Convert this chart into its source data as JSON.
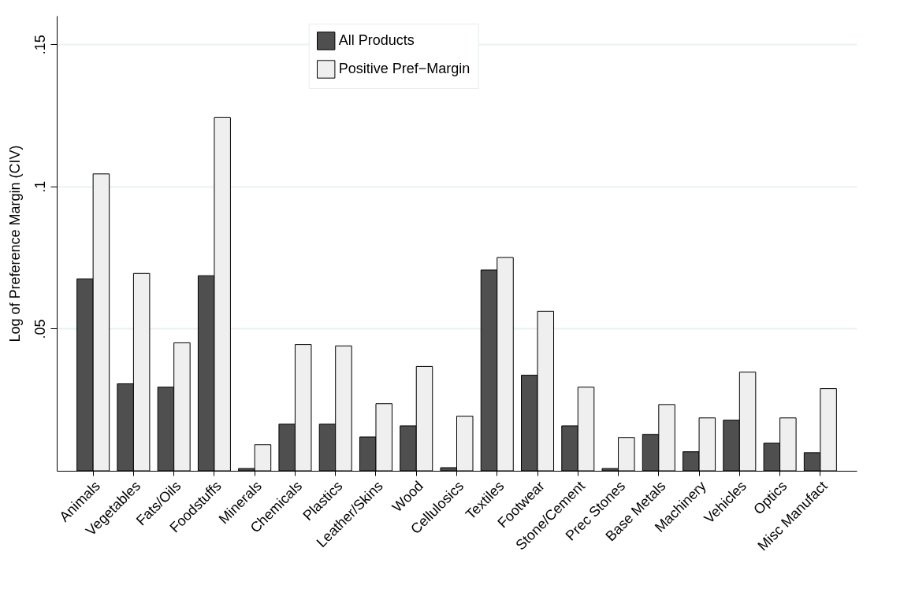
{
  "chart_data": {
    "type": "bar",
    "ylabel": "Log of Preference Margin (CIV)",
    "categories": [
      "Animals",
      "Vegetables",
      "Fats/Oils",
      "Foodstuffs",
      "Minerals",
      "Chemicals",
      "Plastics",
      "Leather/Skins",
      "Wood",
      "Cellulosics",
      "Textiles",
      "Footwear",
      "Stone/Cement",
      "Prec Stones",
      "Base Metals",
      "Machinery",
      "Vehicles",
      "Optics",
      "Misc Manufact"
    ],
    "series": [
      {
        "name": "All Products",
        "color": "#4f4f4f",
        "values": [
          0.0675,
          0.0306,
          0.0294,
          0.0686,
          0.0008,
          0.0164,
          0.0164,
          0.0119,
          0.0158,
          0.0011,
          0.0706,
          0.0336,
          0.0158,
          0.0008,
          0.0128,
          0.0067,
          0.0178,
          0.0097,
          0.0064
        ]
      },
      {
        "name": "Positive Pref−Margin",
        "color": "#efefef",
        "values": [
          0.1044,
          0.0694,
          0.045,
          0.1242,
          0.0092,
          0.0444,
          0.0439,
          0.0236,
          0.0367,
          0.0192,
          0.075,
          0.0561,
          0.0294,
          0.0117,
          0.0233,
          0.0186,
          0.0347,
          0.0186,
          0.0289
        ]
      }
    ],
    "ylim": [
      0,
      0.16
    ],
    "yticks": [
      {
        "value": 0.05,
        "label": ".05"
      },
      {
        "value": 0.1,
        "label": ".1"
      },
      {
        "value": 0.15,
        "label": ".15"
      }
    ],
    "grid": "y",
    "legend": "top"
  }
}
